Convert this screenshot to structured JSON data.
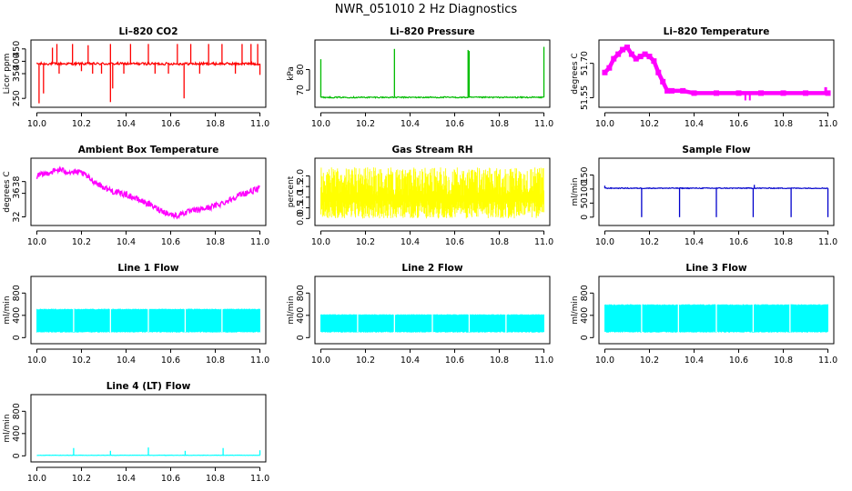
{
  "title": "NWR_051010  2 Hz Diagnostics",
  "chart_data": [
    {
      "id": "co2",
      "type": "line",
      "title": "Li–820 CO2",
      "ylabel": "Licor ppm",
      "color": "#ff0000",
      "x_ticks": [
        10.0,
        10.2,
        10.4,
        10.6,
        10.8,
        11.0
      ],
      "x_tick_labels": [
        "10.0",
        "10.2",
        "10.4",
        "10.6",
        "10.8",
        "11.0"
      ],
      "xlim": [
        9.99,
        11.01
      ],
      "ylim": [
        225,
        475
      ],
      "y_ticks": [
        250,
        350,
        400,
        450
      ],
      "y_tick_labels": [
        "250",
        "350",
        "400",
        "450"
      ],
      "baseline": 390,
      "noise": 5,
      "spikes": [
        {
          "x": 10.01,
          "y": 230
        },
        {
          "x": 10.03,
          "y": 270
        },
        {
          "x": 10.07,
          "y": 455
        },
        {
          "x": 10.09,
          "y": 470
        },
        {
          "x": 10.1,
          "y": 350
        },
        {
          "x": 10.16,
          "y": 470
        },
        {
          "x": 10.2,
          "y": 360
        },
        {
          "x": 10.23,
          "y": 465
        },
        {
          "x": 10.25,
          "y": 350
        },
        {
          "x": 10.29,
          "y": 350
        },
        {
          "x": 10.33,
          "y": 470
        },
        {
          "x": 10.33,
          "y": 235
        },
        {
          "x": 10.34,
          "y": 290
        },
        {
          "x": 10.39,
          "y": 350
        },
        {
          "x": 10.42,
          "y": 470
        },
        {
          "x": 10.5,
          "y": 470
        },
        {
          "x": 10.53,
          "y": 350
        },
        {
          "x": 10.59,
          "y": 350
        },
        {
          "x": 10.63,
          "y": 470
        },
        {
          "x": 10.66,
          "y": 250
        },
        {
          "x": 10.69,
          "y": 470
        },
        {
          "x": 10.73,
          "y": 350
        },
        {
          "x": 10.77,
          "y": 470
        },
        {
          "x": 10.83,
          "y": 470
        },
        {
          "x": 10.89,
          "y": 350
        },
        {
          "x": 10.92,
          "y": 470
        },
        {
          "x": 10.96,
          "y": 470
        },
        {
          "x": 10.99,
          "y": 470
        },
        {
          "x": 11.0,
          "y": 345
        }
      ]
    },
    {
      "id": "pressure",
      "type": "line",
      "title": "Li–820 Pressure",
      "ylabel": "kPa",
      "color": "#00bb00",
      "x_ticks": [
        10.0,
        10.2,
        10.4,
        10.6,
        10.8,
        11.0
      ],
      "x_tick_labels": [
        "10.0",
        "10.2",
        "10.4",
        "10.6",
        "10.8",
        "11.0"
      ],
      "xlim": [
        9.99,
        11.01
      ],
      "ylim": [
        63,
        93
      ],
      "y_ticks": [
        70,
        80
      ],
      "y_tick_labels": [
        "70",
        "80"
      ],
      "baseline": 66.5,
      "noise": 0.3,
      "spikes": [
        {
          "x": 10.0,
          "y": 85
        },
        {
          "x": 10.33,
          "y": 90
        },
        {
          "x": 10.66,
          "y": 89.5
        },
        {
          "x": 10.665,
          "y": 89
        },
        {
          "x": 11.0,
          "y": 91
        }
      ]
    },
    {
      "id": "temperature",
      "type": "scatter",
      "title": "Li–820 Temperature",
      "ylabel": "degrees C",
      "color": "#ff00ff",
      "x_ticks": [
        10.0,
        10.2,
        10.4,
        10.6,
        10.8,
        11.0
      ],
      "x_tick_labels": [
        "10.0",
        "10.2",
        "10.4",
        "10.6",
        "10.8",
        "11.0"
      ],
      "xlim": [
        9.99,
        11.01
      ],
      "ylim": [
        51.52,
        51.79
      ],
      "y_ticks": [
        51.55,
        51.7
      ],
      "y_tick_labels": [
        "51.55",
        "51.70"
      ],
      "x": [
        10.0,
        10.02,
        10.04,
        10.06,
        10.08,
        10.1,
        10.12,
        10.14,
        10.16,
        10.18,
        10.2,
        10.22,
        10.24,
        10.26,
        10.28,
        10.3,
        10.35,
        10.4,
        10.5,
        10.6,
        10.7,
        10.8,
        10.9,
        11.0
      ],
      "y": [
        51.66,
        51.68,
        51.72,
        51.74,
        51.76,
        51.77,
        51.74,
        51.72,
        51.73,
        51.74,
        51.73,
        51.71,
        51.66,
        51.62,
        51.58,
        51.58,
        51.58,
        51.57,
        51.57,
        51.57,
        51.57,
        51.57,
        51.57,
        51.57
      ]
    },
    {
      "id": "ambient",
      "type": "line",
      "title": "Ambient Box Temperature",
      "ylabel": "degrees C",
      "color": "#ff00ff",
      "x_ticks": [
        10.0,
        10.2,
        10.4,
        10.6,
        10.8,
        11.0
      ],
      "x_tick_labels": [
        "10.0",
        "10.2",
        "10.4",
        "10.6",
        "10.8",
        "11.0"
      ],
      "xlim": [
        9.99,
        11.01
      ],
      "ylim": [
        31.0,
        41.5
      ],
      "y_ticks": [
        32,
        36,
        38
      ],
      "y_tick_labels": [
        "32",
        "36",
        "38"
      ],
      "x": [
        10.0,
        10.05,
        10.1,
        10.15,
        10.2,
        10.25,
        10.3,
        10.35,
        10.4,
        10.45,
        10.5,
        10.55,
        10.6,
        10.63,
        10.65,
        10.7,
        10.75,
        10.8,
        10.85,
        10.9,
        10.95,
        11.0
      ],
      "y": [
        38.9,
        39.5,
        40.0,
        39.6,
        39.5,
        38.2,
        37.0,
        36.2,
        35.8,
        35.0,
        34.2,
        33.2,
        32.4,
        32.2,
        32.6,
        33.0,
        33.4,
        33.9,
        34.6,
        35.6,
        36.2,
        36.8
      ],
      "noise": 0.5
    },
    {
      "id": "rh",
      "type": "area",
      "title": "Gas Stream RH",
      "ylabel": "percent",
      "color": "#ffff00",
      "x_ticks": [
        10.0,
        10.2,
        10.4,
        10.6,
        10.8,
        11.0
      ],
      "x_tick_labels": [
        "10.0",
        "10.2",
        "10.4",
        "10.6",
        "10.8",
        "11.0"
      ],
      "xlim": [
        9.99,
        11.01
      ],
      "ylim": [
        -0.2,
        2.7
      ],
      "y_ticks": [
        0.0,
        0.5,
        1.0,
        1.5,
        2.0
      ],
      "y_tick_labels": [
        "0.0",
        "0.5",
        "1.0",
        "1.5",
        "2.0"
      ],
      "low": 0.0,
      "high": 2.4
    },
    {
      "id": "sample_flow",
      "type": "line",
      "title": "Sample Flow",
      "ylabel": "ml/min",
      "color": "#0000cc",
      "x_ticks": [
        10.0,
        10.2,
        10.4,
        10.6,
        10.8,
        11.0
      ],
      "x_tick_labels": [
        "10.0",
        "10.2",
        "10.4",
        "10.6",
        "10.8",
        "11.0"
      ],
      "xlim": [
        9.99,
        11.01
      ],
      "ylim": [
        -20,
        200
      ],
      "y_ticks": [
        0,
        50,
        100,
        150
      ],
      "y_tick_labels": [
        "0",
        "50",
        "100",
        "150"
      ],
      "baseline": 103,
      "noise": 1.5,
      "spikes": [
        {
          "x": 10.0,
          "y": 112
        },
        {
          "x": 10.165,
          "y": 0
        },
        {
          "x": 10.335,
          "y": 0
        },
        {
          "x": 10.5,
          "y": 0
        },
        {
          "x": 10.665,
          "y": 0
        },
        {
          "x": 10.67,
          "y": 115
        },
        {
          "x": 10.835,
          "y": 0
        },
        {
          "x": 11.0,
          "y": 0
        }
      ]
    },
    {
      "id": "line1",
      "type": "area",
      "title": "Line 1 Flow",
      "ylabel": "ml/min",
      "color": "#00ffff",
      "x_ticks": [
        10.0,
        10.2,
        10.4,
        10.6,
        10.8,
        11.0
      ],
      "x_tick_labels": [
        "10.0",
        "10.2",
        "10.4",
        "10.6",
        "10.8",
        "11.0"
      ],
      "xlim": [
        9.99,
        11.01
      ],
      "ylim": [
        -60,
        1050
      ],
      "y_ticks": [
        0,
        400,
        800
      ],
      "y_tick_labels": [
        "0",
        "400",
        "800"
      ],
      "low": 100,
      "high": 520,
      "gaps": [
        10.0,
        10.165,
        10.33,
        10.5,
        10.665,
        10.83,
        11.0
      ]
    },
    {
      "id": "line2",
      "type": "area",
      "title": "Line 2 Flow",
      "ylabel": "ml/min",
      "color": "#00ffff",
      "x_ticks": [
        10.0,
        10.2,
        10.4,
        10.6,
        10.8,
        11.0
      ],
      "x_tick_labels": [
        "10.0",
        "10.2",
        "10.4",
        "10.6",
        "10.8",
        "11.0"
      ],
      "xlim": [
        9.99,
        11.01
      ],
      "ylim": [
        -60,
        1050
      ],
      "y_ticks": [
        0,
        400,
        800
      ],
      "y_tick_labels": [
        "0",
        "400",
        "800"
      ],
      "low": 100,
      "high": 420,
      "gaps": [
        10.0,
        10.165,
        10.33,
        10.5,
        10.665,
        10.83,
        11.0
      ]
    },
    {
      "id": "line3",
      "type": "area",
      "title": "Line 3 Flow",
      "ylabel": "ml/min",
      "color": "#00ffff",
      "x_ticks": [
        10.0,
        10.2,
        10.4,
        10.6,
        10.8,
        11.0
      ],
      "x_tick_labels": [
        "10.0",
        "10.2",
        "10.4",
        "10.6",
        "10.8",
        "11.0"
      ],
      "xlim": [
        9.99,
        11.01
      ],
      "ylim": [
        -60,
        1050
      ],
      "y_ticks": [
        0,
        400,
        800
      ],
      "y_tick_labels": [
        "0",
        "400",
        "800"
      ],
      "low": 100,
      "high": 600,
      "gaps": [
        10.0,
        10.165,
        10.33,
        10.5,
        10.665,
        10.83,
        11.0
      ]
    },
    {
      "id": "line4",
      "type": "line",
      "title": "Line 4 (LT) Flow",
      "ylabel": "ml/min",
      "color": "#00ffff",
      "x_ticks": [
        10.0,
        10.2,
        10.4,
        10.6,
        10.8,
        11.0
      ],
      "x_tick_labels": [
        "10.0",
        "10.2",
        "10.4",
        "10.6",
        "10.8",
        "11.0"
      ],
      "xlim": [
        9.99,
        11.01
      ],
      "ylim": [
        -60,
        1050
      ],
      "y_ticks": [
        0,
        400,
        800
      ],
      "y_tick_labels": [
        "0",
        "400",
        "800"
      ],
      "baseline": 10,
      "noise": 3,
      "spikes": [
        {
          "x": 10.165,
          "y": 140
        },
        {
          "x": 10.33,
          "y": 90
        },
        {
          "x": 10.5,
          "y": 150
        },
        {
          "x": 10.665,
          "y": 90
        },
        {
          "x": 10.835,
          "y": 140
        },
        {
          "x": 11.0,
          "y": 100
        }
      ]
    }
  ]
}
